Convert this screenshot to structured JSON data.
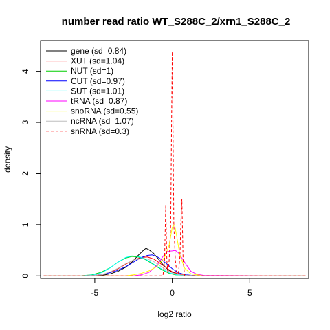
{
  "chart_data": {
    "type": "line",
    "title": "number read ratio WT_S288C_2/xrn1_S288C_2",
    "xlabel": "log2 ratio",
    "ylabel": "density",
    "xlim": [
      -8.5,
      8.8
    ],
    "ylim": [
      -0.05,
      4.6
    ],
    "x_ticks": [
      -5,
      0,
      5
    ],
    "x_tick_labels": [
      "-5",
      "0",
      "5"
    ],
    "y_ticks": [
      0,
      1,
      2,
      3,
      4
    ],
    "y_tick_labels": [
      "0",
      "1",
      "2",
      "3",
      "4"
    ],
    "grid": false,
    "legend_position": "top-left",
    "series": [
      {
        "name": "gene (sd=0.84)",
        "color": "#000000",
        "dash": "solid",
        "x": [
          -8.3,
          -5.5,
          -4.5,
          -4.0,
          -3.5,
          -3.0,
          -2.6,
          -2.2,
          -1.9,
          -1.7,
          -1.5,
          -1.2,
          -0.9,
          -0.6,
          -0.3,
          0.0,
          0.5,
          1.0,
          2.0,
          8.6
        ],
        "y": [
          0,
          0,
          0.01,
          0.04,
          0.09,
          0.17,
          0.27,
          0.4,
          0.49,
          0.54,
          0.51,
          0.44,
          0.33,
          0.22,
          0.13,
          0.07,
          0.02,
          0.01,
          0,
          0
        ]
      },
      {
        "name": "XUT (sd=1.04)",
        "color": "#FF0000",
        "dash": "solid",
        "x": [
          -8.3,
          -6.0,
          -5.0,
          -4.5,
          -4.0,
          -3.5,
          -3.0,
          -2.5,
          -2.0,
          -1.6,
          -1.2,
          -0.8,
          -0.4,
          0.0,
          0.5,
          1.0,
          2.0,
          8.6
        ],
        "y": [
          0,
          0,
          0.01,
          0.03,
          0.07,
          0.14,
          0.23,
          0.31,
          0.36,
          0.37,
          0.33,
          0.25,
          0.16,
          0.08,
          0.03,
          0.01,
          0,
          0
        ]
      },
      {
        "name": "NUT (sd=1)",
        "color": "#00CD00",
        "dash": "solid",
        "x": [
          -8.3,
          -6.0,
          -5.2,
          -4.6,
          -4.0,
          -3.5,
          -3.0,
          -2.6,
          -2.2,
          -1.8,
          -1.4,
          -1.0,
          -0.6,
          -0.2,
          0.2,
          0.8,
          1.5,
          8.6
        ],
        "y": [
          0,
          0,
          0.02,
          0.07,
          0.16,
          0.27,
          0.35,
          0.38,
          0.37,
          0.33,
          0.26,
          0.18,
          0.11,
          0.05,
          0.02,
          0.01,
          0,
          0
        ]
      },
      {
        "name": "CUT (sd=0.97)",
        "color": "#0000FF",
        "dash": "solid",
        "x": [
          -8.3,
          -6.0,
          -5.0,
          -4.3,
          -3.6,
          -3.0,
          -2.5,
          -2.0,
          -1.6,
          -1.3,
          -1.0,
          -0.7,
          -0.3,
          0.0,
          0.4,
          0.9,
          1.6,
          8.6
        ],
        "y": [
          0,
          0,
          0.01,
          0.04,
          0.1,
          0.18,
          0.27,
          0.36,
          0.4,
          0.41,
          0.38,
          0.32,
          0.22,
          0.14,
          0.06,
          0.02,
          0,
          0
        ]
      },
      {
        "name": "SUT (sd=1.01)",
        "color": "#00FFFF",
        "dash": "solid",
        "x": [
          -8.3,
          -6.0,
          -5.0,
          -4.5,
          -4.0,
          -3.5,
          -3.0,
          -2.6,
          -2.2,
          -1.8,
          -1.4,
          -1.0,
          -0.6,
          -0.2,
          0.3,
          0.8,
          1.5,
          8.6
        ],
        "y": [
          0,
          0,
          0.02,
          0.07,
          0.16,
          0.27,
          0.36,
          0.39,
          0.38,
          0.34,
          0.27,
          0.19,
          0.12,
          0.06,
          0.02,
          0.01,
          0,
          0
        ]
      },
      {
        "name": "tRNA (sd=0.87)",
        "color": "#FF00FF",
        "dash": "solid",
        "x": [
          -8.3,
          -2.5,
          -2.0,
          -1.5,
          -1.0,
          -0.6,
          -0.3,
          0.0,
          0.2,
          0.4,
          0.6,
          0.9,
          1.2,
          1.6,
          2.0,
          8.6
        ],
        "y": [
          0,
          0,
          0.02,
          0.07,
          0.2,
          0.38,
          0.48,
          0.49,
          0.5,
          0.45,
          0.36,
          0.22,
          0.09,
          0.03,
          0.01,
          0
        ]
      },
      {
        "name": "snoRNA (sd=0.55)",
        "color": "#FFFF00",
        "dash": "solid",
        "x": [
          -8.3,
          -3.0,
          -2.5,
          -2.0,
          -1.5,
          -1.0,
          -0.5,
          -0.2,
          0.0,
          0.15,
          0.3,
          0.5,
          0.8,
          1.2,
          2.0,
          8.6
        ],
        "y": [
          0,
          0,
          0.02,
          0.05,
          0.1,
          0.18,
          0.36,
          0.6,
          0.95,
          1.0,
          0.75,
          0.4,
          0.15,
          0.04,
          0,
          0
        ]
      },
      {
        "name": "ncRNA (sd=1.07)",
        "color": "#BEBEBE",
        "dash": "solid",
        "x": [
          -8.3,
          -6.0,
          -5.0,
          -4.5,
          -4.0,
          -3.5,
          -3.0,
          -2.5,
          -2.0,
          -1.6,
          -1.2,
          -0.8,
          -0.4,
          0.0,
          0.5,
          1.0,
          2.0,
          8.6
        ],
        "y": [
          0,
          0,
          0.01,
          0.03,
          0.08,
          0.15,
          0.24,
          0.31,
          0.34,
          0.33,
          0.28,
          0.2,
          0.12,
          0.06,
          0.02,
          0.01,
          0,
          0
        ]
      },
      {
        "name": "snRNA (sd=0.3)",
        "color": "#FF0000",
        "dash": "dashed",
        "x": [
          -8.3,
          -0.6,
          -0.5,
          -0.42,
          -0.35,
          -0.28,
          -0.2,
          -0.1,
          -0.05,
          0.0,
          0.05,
          0.1,
          0.2,
          0.3,
          0.4,
          0.5,
          0.55,
          0.62,
          0.7,
          0.8,
          8.6
        ],
        "y": [
          0,
          0,
          0.3,
          1.38,
          0.3,
          0.05,
          0.3,
          1.0,
          2.8,
          4.38,
          2.8,
          1.0,
          0.3,
          0.05,
          0.05,
          0.4,
          1.0,
          1.5,
          0.3,
          0,
          0
        ]
      }
    ]
  }
}
